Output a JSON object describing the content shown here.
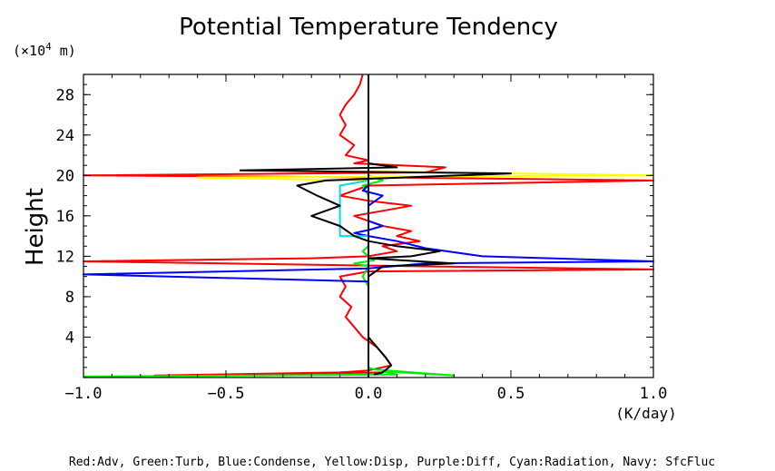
{
  "chart_data": {
    "type": "line",
    "title": "Potential Temperature Tendency",
    "y_unit_prefix": "(×10",
    "y_unit_exp": "4",
    "y_unit_suffix": " m)",
    "ylabel": "Height",
    "xlabel": "(K/day)",
    "xlim": [
      -1.0,
      1.0
    ],
    "ylim": [
      0,
      30
    ],
    "x_ticks": [
      "−1.0",
      "−0.5",
      "0.0",
      "0.5",
      "1.0"
    ],
    "x_tick_values": [
      -1.0,
      -0.5,
      0.0,
      0.5,
      1.0
    ],
    "y_ticks": [
      "4",
      "8",
      "12",
      "16",
      "20",
      "24",
      "28"
    ],
    "y_tick_values": [
      4,
      8,
      12,
      16,
      20,
      24,
      28
    ],
    "caption": "Red:Adv, Green:Turb, Blue:Condense, Yellow:Disp, Purple:Diff, Cyan:Radiation, Navy: SfcFluc",
    "grid": false,
    "legend": "caption-bottom",
    "series": [
      {
        "name": "Red:Adv",
        "color": "#ff0000",
        "points": [
          [
            0.02,
            0.3
          ],
          [
            0.05,
            0.5
          ],
          [
            -0.75,
            0.2
          ],
          [
            -0.1,
            0.5
          ],
          [
            0.0,
            0.7
          ],
          [
            0.08,
            1.2
          ],
          [
            0.06,
            2.0
          ],
          [
            0.03,
            3.0
          ],
          [
            -0.02,
            4.0
          ],
          [
            -0.05,
            5.0
          ],
          [
            -0.08,
            6.0
          ],
          [
            -0.06,
            7.0
          ],
          [
            -0.1,
            8.0
          ],
          [
            -0.08,
            9.0
          ],
          [
            -0.1,
            10.0
          ],
          [
            0.0,
            10.5
          ],
          [
            1.0,
            10.7
          ],
          [
            0.2,
            11.0
          ],
          [
            -1.0,
            11.5
          ],
          [
            -0.2,
            11.8
          ],
          [
            0.0,
            12.0
          ],
          [
            0.1,
            12.5
          ],
          [
            0.05,
            13.0
          ],
          [
            0.18,
            13.5
          ],
          [
            0.1,
            14.0
          ],
          [
            0.15,
            14.5
          ],
          [
            0.05,
            15.0
          ],
          [
            -0.05,
            16.0
          ],
          [
            0.05,
            16.5
          ],
          [
            0.15,
            17.0
          ],
          [
            0.0,
            17.5
          ],
          [
            -0.1,
            18.0
          ],
          [
            -0.05,
            18.5
          ],
          [
            0.0,
            19.0
          ],
          [
            1.0,
            19.5
          ],
          [
            0.1,
            19.8
          ],
          [
            -1.0,
            20.0
          ],
          [
            0.2,
            20.3
          ],
          [
            0.27,
            20.8
          ],
          [
            -0.05,
            21.2
          ],
          [
            0.0,
            21.5
          ],
          [
            -0.08,
            22.0
          ],
          [
            -0.05,
            23.0
          ],
          [
            -0.1,
            24.0
          ],
          [
            -0.08,
            25.0
          ],
          [
            -0.1,
            26.0
          ],
          [
            -0.08,
            27.0
          ],
          [
            -0.05,
            28.0
          ],
          [
            -0.03,
            29.0
          ],
          [
            -0.02,
            30.0
          ]
        ]
      },
      {
        "name": "Green:Turb",
        "color": "#00ee00",
        "points": [
          [
            -1.0,
            0.1
          ],
          [
            0.1,
            0.3
          ],
          [
            0.05,
            0.6
          ],
          [
            0.3,
            0.2
          ],
          [
            0.02,
            0.8
          ],
          [
            0.0,
            1.0
          ],
          [
            0.0,
            9.0
          ],
          [
            -0.02,
            10.0
          ],
          [
            0.0,
            11.0
          ],
          [
            -0.05,
            11.3
          ],
          [
            0.02,
            11.6
          ],
          [
            0.0,
            12.0
          ],
          [
            -0.02,
            12.5
          ],
          [
            0.0,
            13.0
          ],
          [
            0.0,
            18.0
          ],
          [
            -0.02,
            19.0
          ],
          [
            0.05,
            19.5
          ],
          [
            0.0,
            20.0
          ],
          [
            0.0,
            30.0
          ]
        ]
      },
      {
        "name": "Blue:Condense",
        "color": "#0000ff",
        "points": [
          [
            0.0,
            0.1
          ],
          [
            0.0,
            9.5
          ],
          [
            -1.0,
            10.2
          ],
          [
            0.0,
            10.8
          ],
          [
            0.2,
            11.3
          ],
          [
            1.0,
            11.5
          ],
          [
            0.4,
            12.0
          ],
          [
            0.2,
            12.8
          ],
          [
            0.1,
            13.5
          ],
          [
            0.0,
            14.0
          ],
          [
            -0.05,
            14.3
          ],
          [
            0.0,
            14.6
          ],
          [
            0.05,
            15.0
          ],
          [
            0.0,
            15.5
          ],
          [
            0.0,
            17.0
          ],
          [
            0.05,
            18.0
          ],
          [
            -0.02,
            18.5
          ],
          [
            0.0,
            19.0
          ],
          [
            0.0,
            30.0
          ]
        ]
      },
      {
        "name": "Yellow:Disp",
        "color": "#ffff00",
        "points": [
          [
            0.0,
            0.0
          ],
          [
            0.0,
            19.5
          ],
          [
            -0.6,
            19.8
          ],
          [
            1.0,
            20.0
          ],
          [
            0.0,
            20.4
          ],
          [
            0.0,
            30.0
          ]
        ]
      },
      {
        "name": "Purple:Diff",
        "color": "#aa00aa",
        "points": [
          [
            0.0,
            0.0
          ],
          [
            0.0,
            30.0
          ]
        ]
      },
      {
        "name": "Cyan:Radiation",
        "color": "#00dddd",
        "points": [
          [
            0.0,
            0.0
          ],
          [
            0.0,
            14.0
          ],
          [
            -0.1,
            14.0
          ],
          [
            -0.1,
            19.0
          ],
          [
            0.0,
            19.5
          ],
          [
            0.0,
            30.0
          ]
        ]
      },
      {
        "name": "Navy: SfcFluc",
        "color": "#0000aa",
        "points": [
          [
            0.0,
            0.0
          ],
          [
            0.0,
            30.0
          ]
        ]
      },
      {
        "name": "",
        "color": "#000000",
        "points": [
          [
            0.02,
            0.3
          ],
          [
            0.05,
            0.5
          ],
          [
            0.08,
            1.2
          ],
          [
            0.06,
            2.0
          ],
          [
            0.03,
            3.0
          ],
          [
            0.0,
            4.0
          ],
          [
            0.0,
            10.0
          ],
          [
            0.05,
            11.0
          ],
          [
            0.3,
            11.3
          ],
          [
            0.0,
            11.8
          ],
          [
            0.15,
            12.0
          ],
          [
            0.25,
            12.5
          ],
          [
            0.1,
            13.0
          ],
          [
            0.0,
            13.5
          ],
          [
            -0.05,
            14.0
          ],
          [
            -0.1,
            15.0
          ],
          [
            -0.2,
            16.0
          ],
          [
            -0.1,
            17.0
          ],
          [
            -0.18,
            18.0
          ],
          [
            -0.25,
            19.0
          ],
          [
            -0.15,
            19.5
          ],
          [
            0.5,
            20.2
          ],
          [
            -0.45,
            20.5
          ],
          [
            0.1,
            20.8
          ],
          [
            0.0,
            21.2
          ],
          [
            0.0,
            30.0
          ]
        ]
      }
    ],
    "zero_line_color": "#000000"
  }
}
